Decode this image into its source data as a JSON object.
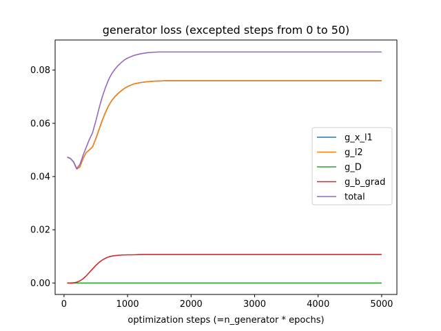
{
  "chart_data": {
    "type": "line",
    "title": "generator loss (excepted steps from 0 to 50)",
    "xlabel": "optimization steps (=n_generator * epochs)",
    "ylabel": "",
    "xlim": [
      -140,
      5240
    ],
    "ylim": [
      -0.0043,
      0.0913
    ],
    "xticks": [
      0,
      1000,
      2000,
      3000,
      4000,
      5000
    ],
    "xtick_labels": [
      "0",
      "1000",
      "2000",
      "3000",
      "4000",
      "5000"
    ],
    "yticks": [
      0.0,
      0.02,
      0.04,
      0.06,
      0.08
    ],
    "ytick_labels": [
      "0.00",
      "0.02",
      "0.04",
      "0.06",
      "0.08"
    ],
    "grid": false,
    "legend_position": "center-right",
    "series": [
      {
        "name": "g_x_l1",
        "color": "#1f77b4",
        "x": [
          50,
          100,
          150,
          200,
          250,
          300,
          350,
          400,
          450,
          500,
          550,
          600,
          650,
          700,
          750,
          800,
          850,
          900,
          950,
          1000,
          1100,
          1200,
          1300,
          1400,
          1500,
          1600,
          1800,
          2000,
          2500,
          3000,
          3500,
          4000,
          4500,
          5000
        ],
        "y": [
          0.0473,
          0.0468,
          0.0455,
          0.0428,
          0.0436,
          0.0468,
          0.049,
          0.05,
          0.0512,
          0.0542,
          0.0576,
          0.061,
          0.064,
          0.0665,
          0.0685,
          0.07,
          0.0712,
          0.0722,
          0.0731,
          0.0738,
          0.0748,
          0.0753,
          0.0756,
          0.0758,
          0.0759,
          0.076,
          0.076,
          0.076,
          0.076,
          0.076,
          0.076,
          0.076,
          0.076,
          0.076
        ]
      },
      {
        "name": "g_l2",
        "color": "#ff7f0e",
        "x": [
          50,
          100,
          150,
          200,
          250,
          300,
          350,
          400,
          450,
          500,
          550,
          600,
          650,
          700,
          750,
          800,
          850,
          900,
          950,
          1000,
          1100,
          1200,
          1300,
          1400,
          1500,
          1600,
          1800,
          2000,
          2500,
          3000,
          3500,
          4000,
          4500,
          5000
        ],
        "y": [
          0.0473,
          0.0468,
          0.0455,
          0.0428,
          0.0436,
          0.0468,
          0.049,
          0.05,
          0.0512,
          0.0542,
          0.0576,
          0.061,
          0.064,
          0.0665,
          0.0685,
          0.07,
          0.0712,
          0.0722,
          0.0731,
          0.0738,
          0.0748,
          0.0753,
          0.0756,
          0.0758,
          0.0759,
          0.076,
          0.076,
          0.076,
          0.076,
          0.076,
          0.076,
          0.076,
          0.076,
          0.076
        ]
      },
      {
        "name": "g_D",
        "color": "#2ca02c",
        "x": [
          50,
          1000,
          2000,
          3000,
          4000,
          5000
        ],
        "y": [
          0.0,
          0.0,
          0.0,
          0.0,
          0.0,
          0.0
        ]
      },
      {
        "name": "g_b_grad",
        "color": "#d62728",
        "x": [
          50,
          100,
          150,
          200,
          250,
          300,
          350,
          400,
          450,
          500,
          550,
          600,
          650,
          700,
          750,
          800,
          900,
          1000,
          1100,
          1200,
          1400,
          1600,
          2000,
          3000,
          4000,
          5000
        ],
        "y": [
          0.0,
          0.0,
          0.0001,
          0.0003,
          0.0008,
          0.0016,
          0.0027,
          0.004,
          0.0053,
          0.0066,
          0.0077,
          0.0086,
          0.0093,
          0.0098,
          0.0101,
          0.0103,
          0.0105,
          0.0106,
          0.0106,
          0.0107,
          0.0107,
          0.0107,
          0.0107,
          0.0107,
          0.0107,
          0.0107
        ]
      },
      {
        "name": "total",
        "color": "#9467bd",
        "x": [
          50,
          100,
          150,
          200,
          250,
          300,
          350,
          400,
          450,
          500,
          550,
          600,
          650,
          700,
          750,
          800,
          850,
          900,
          950,
          1000,
          1100,
          1200,
          1300,
          1400,
          1500,
          1600,
          1800,
          2000,
          2500,
          3000,
          3500,
          4000,
          4500,
          5000
        ],
        "y": [
          0.0473,
          0.0468,
          0.0455,
          0.043,
          0.0445,
          0.048,
          0.051,
          0.054,
          0.0565,
          0.0608,
          0.0655,
          0.0698,
          0.0733,
          0.0763,
          0.0786,
          0.0803,
          0.0817,
          0.0828,
          0.0838,
          0.0845,
          0.0855,
          0.0861,
          0.0865,
          0.0867,
          0.0868,
          0.0868,
          0.0868,
          0.0868,
          0.0868,
          0.0868,
          0.0868,
          0.0868,
          0.0868,
          0.0868
        ]
      }
    ]
  }
}
